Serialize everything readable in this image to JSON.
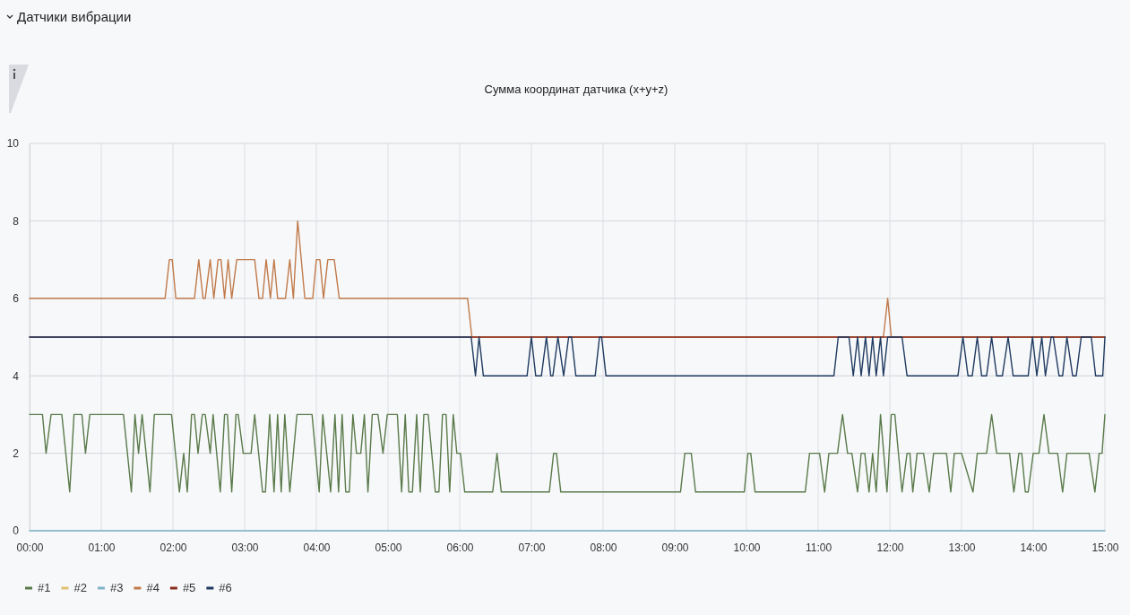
{
  "chart_data": {
    "type": "line",
    "subtitle": "Датчики вибрации",
    "title": "Сумма координат датчика (x+y+z)",
    "xlim": [
      0,
      15
    ],
    "xticks": [
      {
        "value": 0,
        "label": "00:00"
      },
      {
        "value": 1,
        "label": "01:00"
      },
      {
        "value": 2,
        "label": "02:00"
      },
      {
        "value": 3,
        "label": "03:00"
      },
      {
        "value": 4,
        "label": "04:00"
      },
      {
        "value": 5,
        "label": "05:00"
      },
      {
        "value": 6,
        "label": "06:00"
      },
      {
        "value": 7,
        "label": "07:00"
      },
      {
        "value": 8,
        "label": "08:00"
      },
      {
        "value": 9,
        "label": "09:00"
      },
      {
        "value": 10,
        "label": "10:00"
      },
      {
        "value": 11,
        "label": "11:00"
      },
      {
        "value": 12,
        "label": "12:00"
      },
      {
        "value": 13,
        "label": "13:00"
      },
      {
        "value": 14,
        "label": "14:00"
      },
      {
        "value": 15,
        "label": "15:00"
      }
    ],
    "ylim": [
      0,
      10
    ],
    "yticks": [
      0,
      2,
      4,
      6,
      8,
      10
    ],
    "grid": true,
    "legend": "bottom",
    "marker": "none",
    "line_style": "solid",
    "series": [
      {
        "name": "#1",
        "color": "#5a7a4a",
        "x": [
          0,
          0.18,
          0.23,
          0.3,
          0.45,
          0.56,
          0.62,
          0.73,
          0.78,
          0.84,
          1.31,
          1.42,
          1.47,
          1.52,
          1.57,
          1.68,
          1.74,
          1.98,
          2.09,
          2.15,
          2.2,
          2.26,
          2.3,
          2.35,
          2.41,
          2.45,
          2.52,
          2.56,
          2.66,
          2.72,
          2.76,
          2.82,
          2.88,
          2.91,
          2.98,
          3.09,
          3.14,
          3.25,
          3.29,
          3.35,
          3.41,
          3.46,
          3.51,
          3.56,
          3.63,
          3.73,
          3.94,
          4.04,
          4.09,
          4.2,
          4.26,
          4.31,
          4.36,
          4.41,
          4.46,
          4.51,
          4.56,
          4.62,
          4.67,
          4.72,
          4.78,
          4.86,
          4.93,
          4.99,
          5.13,
          5.19,
          5.24,
          5.29,
          5.34,
          5.4,
          5.45,
          5.5,
          5.56,
          5.66,
          5.71,
          5.76,
          5.81,
          5.86,
          5.91,
          5.96,
          6.01,
          6.07,
          6.46,
          6.52,
          6.58,
          7.25,
          7.31,
          7.35,
          7.41,
          9.08,
          9.14,
          9.23,
          9.29,
          9.97,
          10.02,
          10.06,
          10.12,
          10.82,
          10.88,
          11.02,
          11.09,
          11.15,
          11.27,
          11.34,
          11.41,
          11.47,
          11.55,
          11.6,
          11.65,
          11.71,
          11.76,
          11.81,
          11.87,
          11.96,
          12.02,
          12.07,
          12.17,
          12.24,
          12.28,
          12.32,
          12.38,
          12.47,
          12.55,
          12.61,
          12.79,
          12.85,
          12.9,
          13.0,
          13.16,
          13.22,
          13.35,
          13.42,
          13.49,
          13.67,
          13.73,
          13.8,
          13.84,
          13.89,
          13.93,
          14.0,
          14.08,
          14.15,
          14.22,
          14.34,
          14.41,
          14.47,
          14.78,
          14.86,
          14.92,
          14.96,
          15
        ],
        "values": [
          3,
          3,
          2,
          3,
          3,
          1,
          3,
          3,
          2,
          3,
          3,
          1,
          3,
          2,
          3,
          1,
          3,
          3,
          1,
          2,
          1,
          3,
          3,
          2,
          3,
          3,
          2,
          3,
          1,
          3,
          3,
          1,
          3,
          3,
          2,
          2,
          3,
          1,
          1,
          3,
          1,
          3,
          1,
          3,
          1,
          3,
          3,
          1,
          3,
          1,
          3,
          1,
          3,
          1,
          1,
          3,
          2,
          2,
          3,
          1,
          3,
          3,
          2,
          3,
          3,
          1,
          3,
          1,
          1,
          3,
          1,
          3,
          3,
          1,
          1,
          3,
          3,
          1,
          3,
          2,
          2,
          1,
          1,
          2,
          1,
          1,
          2,
          2,
          1,
          1,
          2,
          2,
          1,
          1,
          2,
          2,
          1,
          1,
          2,
          2,
          1,
          2,
          2,
          3,
          2,
          2,
          1,
          2,
          2,
          1,
          2,
          1,
          3,
          1,
          3,
          3,
          1,
          2,
          2,
          1,
          2,
          2,
          1,
          2,
          2,
          1,
          2,
          2,
          1,
          2,
          2,
          3,
          2,
          2,
          1,
          2,
          2,
          1,
          1,
          2,
          2,
          3,
          2,
          2,
          1,
          2,
          2,
          1,
          2,
          2,
          3
        ]
      },
      {
        "name": "#2",
        "color": "#e0c070"
      },
      {
        "name": "#3",
        "color": "#7fb3c8",
        "x": [
          0,
          15
        ],
        "values": [
          0,
          0
        ]
      },
      {
        "name": "#4",
        "color": "#c07a4a",
        "x": [
          0,
          1.89,
          1.95,
          1.99,
          2.04,
          2.3,
          2.36,
          2.42,
          2.45,
          2.52,
          2.57,
          2.63,
          2.67,
          2.72,
          2.77,
          2.82,
          2.89,
          3.14,
          3.2,
          3.25,
          3.3,
          3.36,
          3.41,
          3.46,
          3.57,
          3.63,
          3.68,
          3.74,
          3.84,
          3.95,
          4.0,
          4.05,
          4.1,
          4.16,
          4.25,
          4.32,
          6.11,
          6.17,
          11.91,
          11.97,
          12.02,
          15
        ],
        "values": [
          6,
          6,
          7,
          7,
          6,
          6,
          7,
          6,
          6,
          7,
          6,
          7,
          7,
          6,
          7,
          6,
          7,
          7,
          6,
          6,
          7,
          6,
          7,
          6,
          6,
          7,
          6,
          8,
          6,
          6,
          7,
          7,
          6,
          7,
          7,
          6,
          6,
          5,
          5,
          6,
          5,
          5
        ]
      },
      {
        "name": "#5",
        "color": "#8b2e1e",
        "x": [
          0,
          15
        ],
        "values": [
          5,
          5
        ]
      },
      {
        "name": "#6",
        "color": "#1f3a60",
        "x": [
          0,
          6.16,
          6.22,
          6.27,
          6.33,
          6.94,
          7.0,
          7.06,
          7.14,
          7.21,
          7.27,
          7.3,
          7.37,
          7.45,
          7.52,
          7.56,
          7.62,
          7.89,
          7.95,
          7.98,
          8.04,
          11.22,
          11.28,
          11.43,
          11.49,
          11.55,
          11.6,
          11.66,
          11.71,
          11.76,
          11.81,
          11.87,
          11.91,
          11.97,
          12.17,
          12.24,
          12.95,
          13.02,
          13.09,
          13.15,
          13.22,
          13.28,
          13.35,
          13.42,
          13.49,
          13.57,
          13.65,
          13.72,
          13.93,
          13.99,
          14.05,
          14.12,
          14.17,
          14.25,
          14.28,
          14.36,
          14.41,
          14.47,
          14.55,
          14.6,
          14.67,
          14.81,
          14.87,
          14.97,
          15
        ],
        "values": [
          5,
          5,
          4,
          5,
          4,
          4,
          5,
          4,
          4,
          5,
          4,
          4,
          5,
          4,
          5,
          5,
          4,
          4,
          5,
          5,
          4,
          4,
          5,
          5,
          4,
          5,
          4,
          5,
          4,
          5,
          4,
          5,
          4,
          5,
          5,
          4,
          4,
          5,
          4,
          4,
          5,
          4,
          4,
          5,
          4,
          4,
          5,
          4,
          4,
          5,
          4,
          5,
          4,
          5,
          5,
          4,
          4,
          5,
          4,
          4,
          5,
          5,
          4,
          4,
          5
        ]
      }
    ]
  }
}
